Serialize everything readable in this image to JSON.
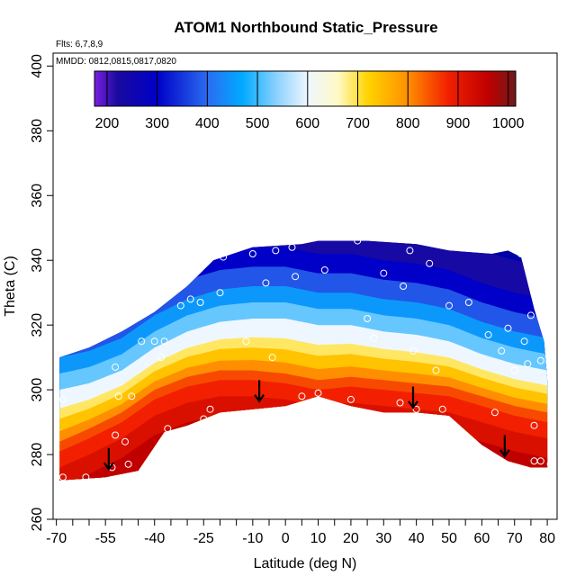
{
  "chart_data": {
    "type": "heatmap",
    "title": "ATOM1 Northbound Static_Pressure",
    "flights_note": "Flts: 6,7,8,9",
    "dates_note": "MMDD: 0812,0815,0817,0820",
    "xlabel": "Latitude (deg N)",
    "ylabel": "Theta (C)",
    "xlim": [
      -71,
      83
    ],
    "ylim": [
      260,
      404
    ],
    "x_ticks_major": [
      -70,
      -55,
      -40,
      -25,
      -10,
      0,
      10,
      20,
      30,
      40,
      50,
      60,
      70,
      80
    ],
    "x_tick_labels": [
      "-70",
      "-55",
      "-40",
      "-25",
      "-10",
      "0",
      "10",
      "20",
      "30",
      "40",
      "50",
      "60",
      "70",
      "80"
    ],
    "x_ticks_minor": [
      -65,
      -60,
      -50,
      -45,
      -35,
      -30,
      -20,
      -15,
      -5,
      5,
      15,
      25,
      35,
      45,
      55,
      65,
      75
    ],
    "y_ticks": [
      260,
      280,
      300,
      320,
      340,
      360,
      380,
      400
    ],
    "y_tick_labels": [
      "260",
      "280",
      "300",
      "320",
      "340",
      "360",
      "380",
      "400"
    ],
    "colorbar": {
      "range": [
        175,
        1015
      ],
      "ticks": [
        200,
        300,
        400,
        500,
        600,
        700,
        800,
        900,
        1000
      ],
      "tick_labels": [
        "200",
        "300",
        "400",
        "500",
        "600",
        "700",
        "800",
        "900",
        "1000"
      ],
      "stops": [
        {
          "value": 175,
          "color": "#7a1fe0"
        },
        {
          "value": 220,
          "color": "#1a0a9e"
        },
        {
          "value": 300,
          "color": "#0000c8"
        },
        {
          "value": 400,
          "color": "#2a6cf0"
        },
        {
          "value": 470,
          "color": "#00aaff"
        },
        {
          "value": 540,
          "color": "#8fd2ff"
        },
        {
          "value": 600,
          "color": "#eef7ff"
        },
        {
          "value": 660,
          "color": "#fff9c8"
        },
        {
          "value": 720,
          "color": "#ffd400"
        },
        {
          "value": 800,
          "color": "#ff8f00"
        },
        {
          "value": 880,
          "color": "#f22000"
        },
        {
          "value": 960,
          "color": "#c00000"
        },
        {
          "value": 1015,
          "color": "#6e1a1a"
        }
      ]
    },
    "domain_top": [
      [
        -69,
        310
      ],
      [
        -60,
        313
      ],
      [
        -50,
        318
      ],
      [
        -40,
        324
      ],
      [
        -30,
        332
      ],
      [
        -22,
        340
      ],
      [
        -10,
        344
      ],
      [
        5,
        345
      ],
      [
        10,
        346
      ],
      [
        25,
        346
      ],
      [
        40,
        345
      ],
      [
        50,
        343
      ],
      [
        63,
        342
      ],
      [
        68,
        343
      ],
      [
        72,
        341
      ],
      [
        76,
        325
      ],
      [
        79,
        315
      ],
      [
        80,
        303
      ]
    ],
    "domain_bottom": [
      [
        -69,
        272
      ],
      [
        -55,
        273
      ],
      [
        -45,
        275
      ],
      [
        -37,
        287
      ],
      [
        -30,
        289
      ],
      [
        -20,
        293
      ],
      [
        -10,
        294
      ],
      [
        0,
        295
      ],
      [
        10,
        298
      ],
      [
        20,
        295
      ],
      [
        30,
        293
      ],
      [
        40,
        293
      ],
      [
        50,
        292
      ],
      [
        60,
        283
      ],
      [
        68,
        278
      ],
      [
        75,
        276
      ],
      [
        80,
        276
      ]
    ],
    "contour_lines": [
      {
        "pressure": 600,
        "points": [
          [
            -69,
            300
          ],
          [
            -60,
            302
          ],
          [
            -50,
            306
          ],
          [
            -40,
            313
          ],
          [
            -30,
            318
          ],
          [
            -20,
            321
          ],
          [
            -10,
            322
          ],
          [
            0,
            322
          ],
          [
            10,
            320
          ],
          [
            20,
            320
          ],
          [
            30,
            318
          ],
          [
            40,
            317
          ],
          [
            50,
            315
          ],
          [
            60,
            311
          ],
          [
            70,
            308
          ],
          [
            80,
            306
          ]
        ]
      },
      {
        "pressure": 850,
        "points": [
          [
            -69,
            284
          ],
          [
            -60,
            288
          ],
          [
            -50,
            293
          ],
          [
            -40,
            300
          ],
          [
            -30,
            304
          ],
          [
            -20,
            306
          ],
          [
            -10,
            306
          ],
          [
            0,
            305
          ],
          [
            10,
            303
          ],
          [
            20,
            304
          ],
          [
            30,
            303
          ],
          [
            40,
            302
          ],
          [
            50,
            301
          ],
          [
            60,
            298
          ],
          [
            70,
            295
          ],
          [
            80,
            293
          ]
        ]
      }
    ],
    "arrows": [
      {
        "lat": -54,
        "theta": 279
      },
      {
        "lat": -8,
        "theta": 300
      },
      {
        "lat": 39,
        "theta": 298
      },
      {
        "lat": 67,
        "theta": 283
      }
    ],
    "sample_points": [
      [
        -68,
        297
      ],
      [
        -68,
        273
      ],
      [
        -61,
        273
      ],
      [
        -52,
        307
      ],
      [
        -51,
        298
      ],
      [
        -53,
        276
      ],
      [
        -52,
        286
      ],
      [
        -49,
        284
      ],
      [
        -48,
        277
      ],
      [
        -47,
        298
      ],
      [
        -44,
        315
      ],
      [
        -40,
        315
      ],
      [
        -38,
        310
      ],
      [
        -37,
        315
      ],
      [
        -36,
        288
      ],
      [
        -32,
        326
      ],
      [
        -29,
        328
      ],
      [
        -26,
        327
      ],
      [
        -25,
        291
      ],
      [
        -23,
        294
      ],
      [
        -20,
        330
      ],
      [
        -19,
        341
      ],
      [
        -12,
        315
      ],
      [
        -10,
        342
      ],
      [
        -6,
        333
      ],
      [
        -4,
        310
      ],
      [
        -3,
        343
      ],
      [
        2,
        344
      ],
      [
        3,
        335
      ],
      [
        5,
        298
      ],
      [
        8,
        347
      ],
      [
        10,
        299
      ],
      [
        12,
        337
      ],
      [
        18,
        348
      ],
      [
        20,
        297
      ],
      [
        22,
        346
      ],
      [
        25,
        322
      ],
      [
        27,
        316
      ],
      [
        30,
        336
      ],
      [
        32,
        347
      ],
      [
        35,
        296
      ],
      [
        36,
        332
      ],
      [
        38,
        343
      ],
      [
        39,
        312
      ],
      [
        40,
        294
      ],
      [
        44,
        339
      ],
      [
        46,
        306
      ],
      [
        48,
        294
      ],
      [
        50,
        326
      ],
      [
        56,
        327
      ],
      [
        62,
        317
      ],
      [
        64,
        293
      ],
      [
        66,
        312
      ],
      [
        68,
        319
      ],
      [
        70,
        306
      ],
      [
        72,
        342
      ],
      [
        73,
        315
      ],
      [
        74,
        308
      ],
      [
        75,
        323
      ],
      [
        76,
        289
      ],
      [
        76,
        278
      ],
      [
        78,
        278
      ],
      [
        78,
        309
      ],
      [
        80,
        319
      ],
      [
        81,
        306
      ],
      [
        81,
        277
      ]
    ]
  }
}
